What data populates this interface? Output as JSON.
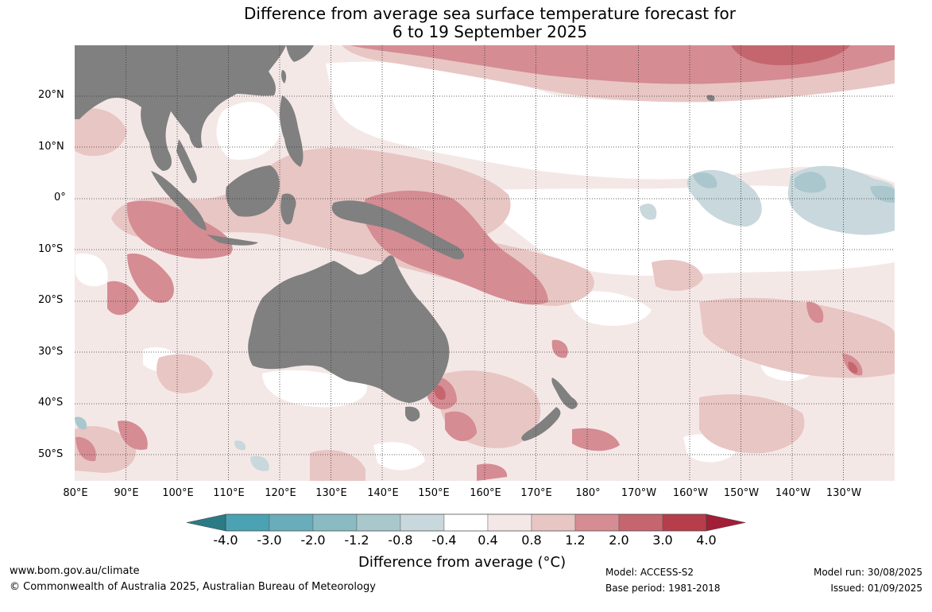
{
  "title": {
    "line1": "Difference from average sea surface temperature forecast for",
    "line2": "6 to 19 September 2025"
  },
  "map": {
    "longitude_labels": [
      "80°E",
      "90°E",
      "100°E",
      "110°E",
      "120°E",
      "130°E",
      "140°E",
      "150°E",
      "160°E",
      "170°E",
      "180°",
      "170°W",
      "160°W",
      "150°W",
      "140°W",
      "130°W"
    ],
    "latitude_labels": [
      "20°N",
      "10°N",
      "0°",
      "10°S",
      "20°S",
      "30°S",
      "40°S",
      "50°S"
    ],
    "land_color": "#808080",
    "warm_colors": [
      "#f4e8e7",
      "#e8c6c4",
      "#d58c93",
      "#c5666f",
      "#b63e4a",
      "#a21e37"
    ],
    "cool_colors": [
      "#c8d8dc",
      "#a9c7cd",
      "#87b7c0",
      "#67a6b2",
      "#479aa8",
      "#2a808e"
    ]
  },
  "colorbar": {
    "tick_labels": [
      "-4.0",
      "-3.0",
      "-2.0",
      "-1.2",
      "-0.8",
      "-0.4",
      "0.4",
      "0.8",
      "1.2",
      "2.0",
      "3.0",
      "4.0"
    ],
    "label": "Difference from average (°C)",
    "colors": [
      "#4aa2b2",
      "#6aadba",
      "#8abbc3",
      "#a8c8cc",
      "#c8d8dc",
      "#ffffff",
      "#f4e8e7",
      "#e8c6c4",
      "#d58c93",
      "#c5666f",
      "#b63e4a"
    ],
    "under_color": "#2b7a86",
    "over_color": "#a21e37"
  },
  "footer": {
    "website": "www.bom.gov.au/climate",
    "copyright": "© Commonwealth of Australia 2025, Australian Bureau of Meteorology",
    "model": "Model: ACCESS-S2",
    "base_period": "Base period: 1981-2018",
    "model_run": "Model run: 30/08/2025",
    "issued": "Issued: 01/09/2025"
  }
}
